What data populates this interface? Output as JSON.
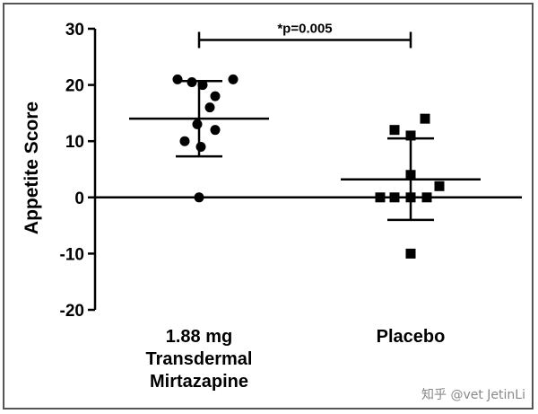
{
  "chart_data": {
    "type": "scatter",
    "title": "",
    "xlabel": "",
    "ylabel": "Appetite Score",
    "ylim": [
      -20,
      30
    ],
    "yticks": [
      -20,
      -10,
      0,
      10,
      20,
      30
    ],
    "grid": false,
    "categories": [
      {
        "lines": [
          "1.88 mg",
          "Transdermal",
          "Mirtazapine"
        ]
      },
      {
        "lines": [
          "Placebo"
        ]
      }
    ],
    "groups": [
      {
        "marker": "circle",
        "mean": 14,
        "sd_upper": 20.7,
        "sd_lower": 7.3,
        "points": [
          {
            "y": 21,
            "jitter": -0.6
          },
          {
            "y": 20.5,
            "jitter": -0.2
          },
          {
            "y": 20,
            "jitter": 0.1
          },
          {
            "y": 21,
            "jitter": 0.95
          },
          {
            "y": 18,
            "jitter": 0.45
          },
          {
            "y": 16,
            "jitter": 0.3
          },
          {
            "y": 13,
            "jitter": -0.05
          },
          {
            "y": 12,
            "jitter": 0.45
          },
          {
            "y": 10,
            "jitter": -0.4
          },
          {
            "y": 9,
            "jitter": 0.05
          },
          {
            "y": 0,
            "jitter": 0.0
          }
        ]
      },
      {
        "marker": "square",
        "mean": 3.2,
        "sd_upper": 10.5,
        "sd_lower": -4,
        "points": [
          {
            "y": 12,
            "jitter": -0.45
          },
          {
            "y": 14,
            "jitter": 0.4
          },
          {
            "y": 11,
            "jitter": 0.0
          },
          {
            "y": 4,
            "jitter": 0.0
          },
          {
            "y": 2,
            "jitter": 0.8
          },
          {
            "y": 0,
            "jitter": -0.85
          },
          {
            "y": 0,
            "jitter": -0.45
          },
          {
            "y": 0,
            "jitter": 0.0
          },
          {
            "y": 0,
            "jitter": 0.45
          },
          {
            "y": -10,
            "jitter": 0.0
          }
        ]
      }
    ],
    "annotation": {
      "text": "*p=0.005",
      "from": 0,
      "to": 1,
      "y": 28
    }
  },
  "watermark": "知乎 @vet JetinLi"
}
